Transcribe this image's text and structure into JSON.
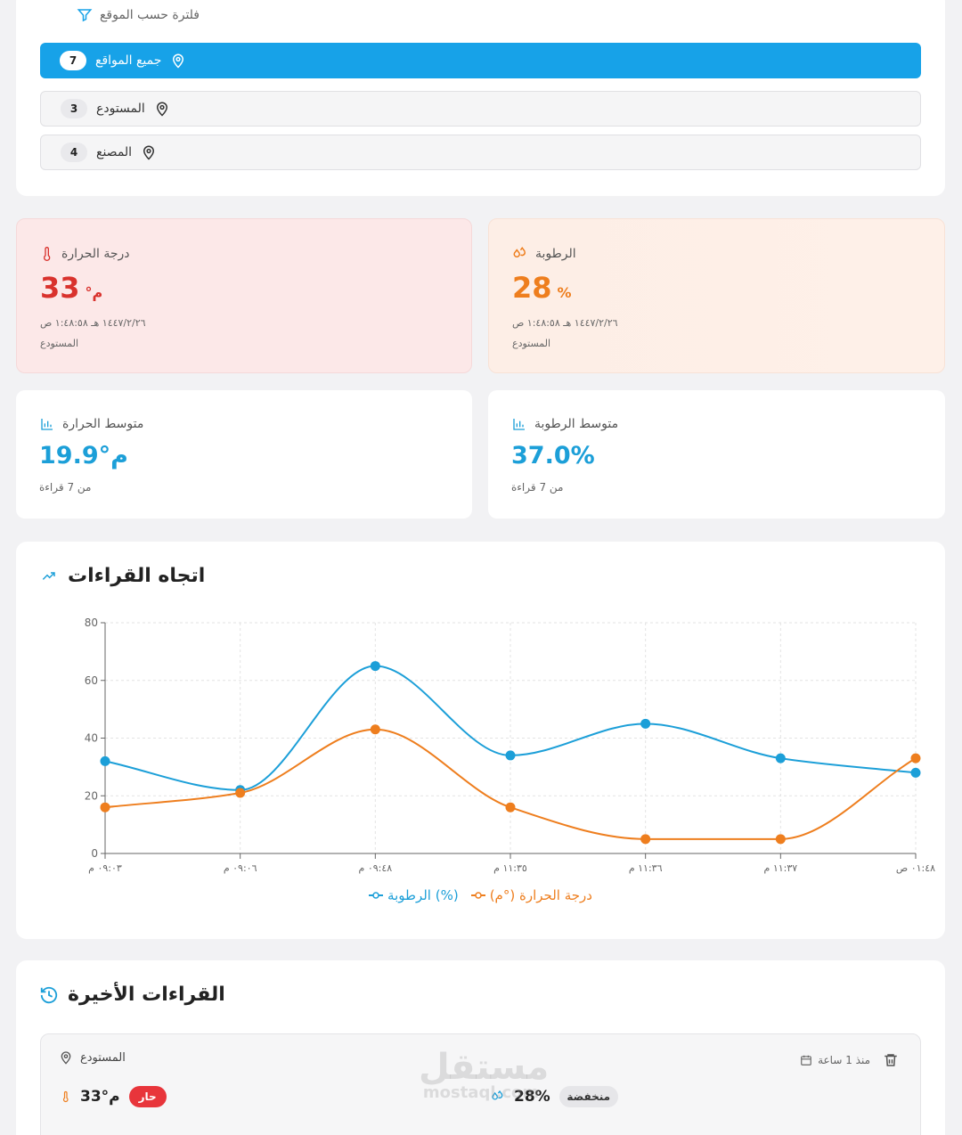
{
  "filter": {
    "title": "فلترة حسب الموقع",
    "options": [
      {
        "label": "جميع المواقع",
        "count": "7",
        "active": true
      },
      {
        "label": "المستودع",
        "count": "3",
        "active": false
      },
      {
        "label": "المصنع",
        "count": "4",
        "active": false
      }
    ]
  },
  "stats": {
    "temperature": {
      "title": "درجة الحرارة",
      "value": "33",
      "unit": "°م",
      "datetime": "١٤٤٧/٢/٢٦ هـ ١:٤٨:٥٨ ص",
      "location": "المستودع",
      "color": "#d9322d"
    },
    "humidity": {
      "title": "الرطوبة",
      "value": "28",
      "unit": "%",
      "datetime": "١٤٤٧/٢/٢٦ هـ ١:٤٨:٥٨ ص",
      "location": "المستودع",
      "color": "#ee7e1e"
    },
    "avg_temperature": {
      "title": "متوسط الحرارة",
      "value": "19.9°م",
      "sub": "من 7 قراءة",
      "color": "#1c9fd8"
    },
    "avg_humidity": {
      "title": "متوسط الرطوبة",
      "value": "37.0%",
      "sub": "من 7 قراءة",
      "color": "#1c9fd8"
    }
  },
  "trend": {
    "title": "اتجاه القراءات"
  },
  "chart_data": {
    "type": "line",
    "categories": [
      "٠٩:٠٣ م",
      "٠٩:٠٦ م",
      "٠٩:٤٨ م",
      "١١:٣٥ م",
      "١١:٣٦ م",
      "١١:٣٧ م",
      "٠١:٤٨ ص"
    ],
    "series": [
      {
        "name": "الرطوبة (%)",
        "values": [
          32,
          22,
          65,
          34,
          45,
          33,
          28
        ],
        "color": "#1c9fd8"
      },
      {
        "name": "درجة الحرارة (°م)",
        "values": [
          16,
          21,
          43,
          16,
          5,
          5,
          33
        ],
        "color": "#ee7e1e"
      }
    ],
    "yticks": [
      0,
      20,
      40,
      60,
      80
    ],
    "ylim": [
      0,
      80
    ],
    "grid": true,
    "legend": "bottom"
  },
  "recent": {
    "title": "القراءات الأخيرة",
    "item": {
      "location": "المستودع",
      "time_ago": "منذ 1 ساعة",
      "temp_value": "33°م",
      "temp_badge": "حار",
      "humidity_value": "28%",
      "humidity_badge": "منخفضة"
    }
  },
  "watermark": {
    "line1": "مستقل",
    "line2": "mostaql.com"
  }
}
